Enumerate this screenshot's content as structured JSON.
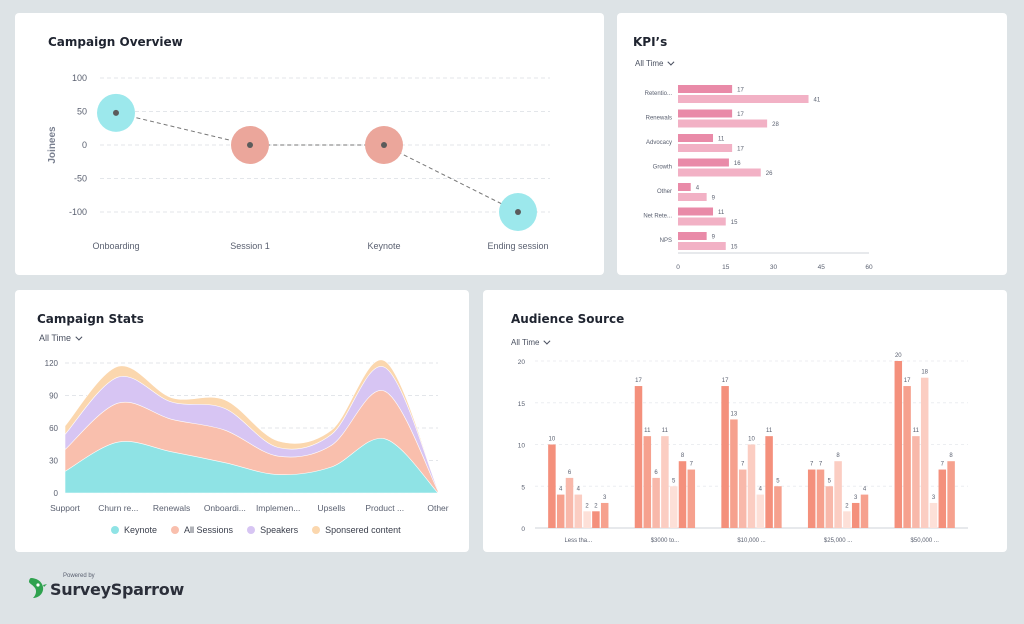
{
  "campaign_overview": {
    "title": "Campaign Overview",
    "chart_data": {
      "type": "scatter",
      "title": "Campaign Overview",
      "ylabel": "Joinees",
      "categories": [
        "Onboarding",
        "Session 1",
        "Keynote",
        "Ending session"
      ],
      "values": [
        48,
        0,
        0,
        -100
      ],
      "bubble_colors": [
        "#9ce8ec",
        "#eba69b",
        "#eba69b",
        "#9ce8ec"
      ],
      "yticks": [
        100,
        50,
        0,
        -50,
        -100
      ],
      "ylim": [
        -100,
        100
      ],
      "grid": true
    }
  },
  "kpis": {
    "title": "KPI’s",
    "filter": "All Time",
    "chart_data": {
      "type": "bar",
      "orientation": "horizontal",
      "categories": [
        "Retentio...",
        "Renewals",
        "Advocacy",
        "Growth",
        "Other",
        "Net Rete...",
        "NPS"
      ],
      "series": [
        {
          "values": [
            17,
            17,
            11,
            16,
            4,
            11,
            9
          ],
          "color": "#e98aa8"
        },
        {
          "values": [
            41,
            28,
            17,
            26,
            9,
            15,
            15
          ],
          "color": "#f2b1c5"
        }
      ],
      "xticks": [
        0,
        15,
        30,
        45,
        60
      ],
      "xlim": [
        0,
        60
      ]
    }
  },
  "campaign_stats": {
    "title": "Campaign Stats",
    "filter": "All Time",
    "chart_data": {
      "type": "area",
      "stacked": true,
      "categories": [
        "Support",
        "Churn re...",
        "Renewals",
        "Onboardi...",
        "Implemen...",
        "Upsells",
        "Product ...",
        "Other"
      ],
      "series": [
        {
          "name": "Keynote",
          "values": [
            20,
            47,
            38,
            28,
            17,
            24,
            50,
            0
          ],
          "color": "#8fe3e5"
        },
        {
          "name": "All Sessions",
          "values": [
            20,
            36,
            30,
            30,
            17,
            20,
            44,
            2
          ],
          "color": "#f9bfad"
        },
        {
          "name": "Speakers",
          "values": [
            14,
            24,
            16,
            20,
            8,
            10,
            22,
            1
          ],
          "color": "#d7c5f3"
        },
        {
          "name": "Sponsered content",
          "values": [
            8,
            10,
            4,
            8,
            6,
            4,
            6,
            0
          ],
          "color": "#fbd7ae"
        }
      ],
      "yticks": [
        0,
        30,
        60,
        90,
        120
      ],
      "ylim": [
        0,
        120
      ],
      "grid": true,
      "legend": "bottom"
    }
  },
  "audience_source": {
    "title": "Audience Source",
    "filter": "All Time",
    "chart_data": {
      "type": "bar",
      "categories": [
        "Less tha...",
        "$3000 to...",
        "$10,000 ...",
        "$25,000 ...",
        "$50,000 ..."
      ],
      "series": [
        {
          "values": [
            10,
            17,
            17,
            7,
            20
          ],
          "color": "#f4907c"
        },
        {
          "values": [
            4,
            11,
            13,
            7,
            17
          ],
          "color": "#f6a18e"
        },
        {
          "values": [
            6,
            6,
            7,
            5,
            11
          ],
          "color": "#f8b8aa"
        },
        {
          "values": [
            4,
            11,
            10,
            8,
            18
          ],
          "color": "#fbcdc2"
        },
        {
          "values": [
            2,
            5,
            4,
            2,
            3
          ],
          "color": "#fde0d8"
        },
        {
          "values": [
            2,
            8,
            11,
            3,
            7
          ],
          "color": "#f4907c"
        },
        {
          "values": [
            3,
            7,
            5,
            4,
            8
          ],
          "color": "#f6a18e"
        }
      ],
      "yticks": [
        0,
        5,
        10,
        15,
        20
      ],
      "ylim": [
        0,
        20
      ],
      "grid": true
    }
  },
  "footer": {
    "powered_by": "Powered by",
    "brand": "SurveySparrow",
    "brand_color": "#2fa24f"
  }
}
